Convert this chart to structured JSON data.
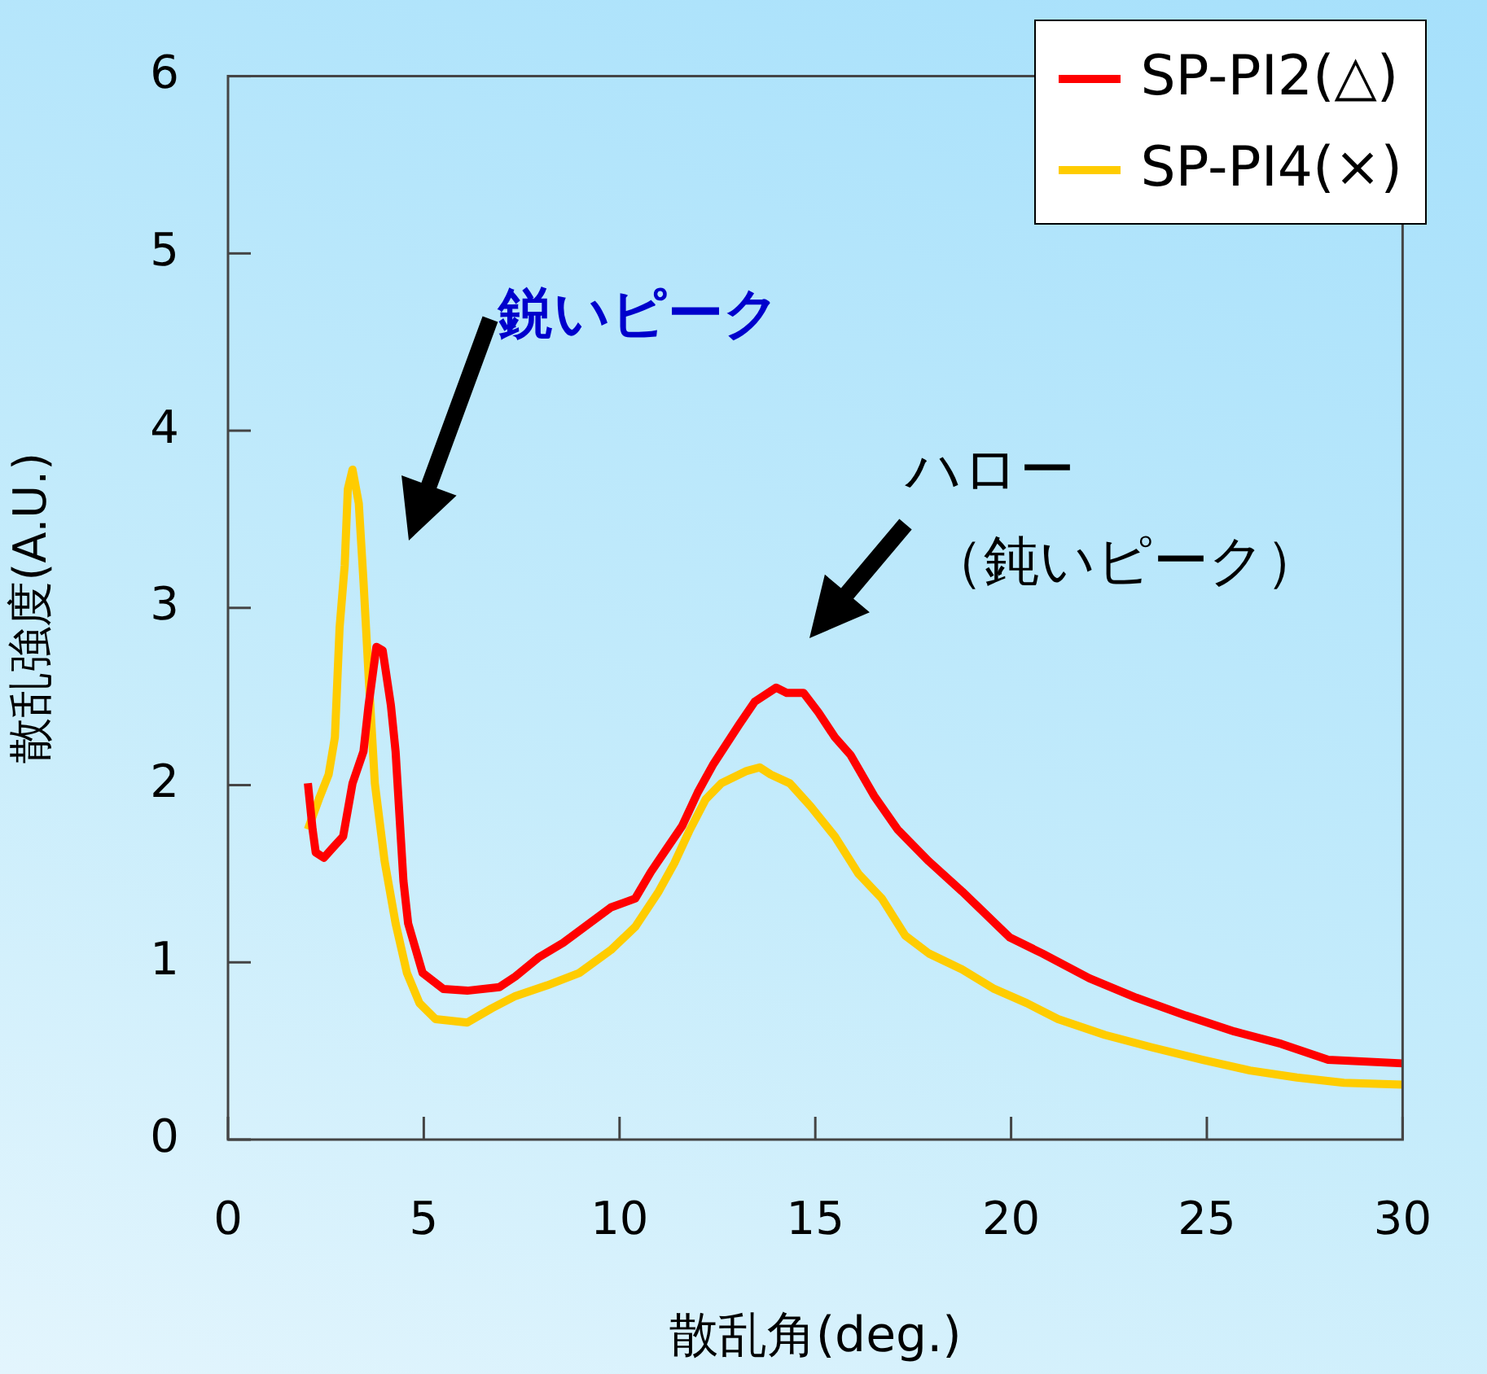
{
  "chart_data": {
    "type": "line",
    "xlabel": "散乱角(deg.)",
    "ylabel": "散乱強度(A.U.)",
    "xlim": [
      0,
      30
    ],
    "xticks": [
      0,
      5,
      10,
      15,
      20,
      25,
      30
    ],
    "ylim": [
      0,
      6
    ],
    "yticks": [
      0,
      1,
      2,
      3,
      4,
      5,
      6
    ],
    "grid": false,
    "legend": "top right",
    "marker": "none",
    "line_style": "solid",
    "annotations": [
      "鋭いピーク",
      "ハロー",
      "（鈍いピーク）"
    ],
    "series": [
      {
        "name": "SP-PI2(△)",
        "color": "#ff0000",
        "x": [
          2.04,
          2.16,
          2.24,
          2.45,
          2.65,
          2.94,
          3.18,
          3.46,
          3.59,
          3.79,
          3.95,
          4.16,
          4.28,
          4.48,
          4.6,
          4.97,
          5.5,
          6.11,
          6.93,
          7.34,
          7.95,
          8.56,
          9.17,
          9.78,
          10.4,
          10.8,
          11.2,
          11.6,
          12.0,
          12.4,
          13.05,
          13.45,
          14.0,
          14.27,
          14.7,
          15.08,
          15.5,
          15.9,
          16.5,
          17.1,
          17.9,
          18.75,
          19.97,
          20.8,
          22.0,
          23.2,
          24.46,
          25.7,
          26.9,
          28.1,
          30
        ],
        "values": [
          2.01,
          1.75,
          1.62,
          1.59,
          1.64,
          1.71,
          2.01,
          2.19,
          2.45,
          2.78,
          2.76,
          2.45,
          2.19,
          1.46,
          1.22,
          0.94,
          0.85,
          0.84,
          0.86,
          0.92,
          1.03,
          1.11,
          1.21,
          1.31,
          1.36,
          1.51,
          1.64,
          1.77,
          1.96,
          2.12,
          2.34,
          2.47,
          2.55,
          2.52,
          2.52,
          2.41,
          2.27,
          2.17,
          1.94,
          1.75,
          1.57,
          1.4,
          1.14,
          1.05,
          0.91,
          0.8,
          0.7,
          0.61,
          0.54,
          0.45,
          0.43
        ]
      },
      {
        "name": "SP-PI4(×)",
        "color": "#ffcc00",
        "x": [
          2.04,
          2.32,
          2.57,
          2.73,
          2.85,
          2.98,
          3.06,
          3.18,
          3.34,
          3.46,
          3.59,
          3.75,
          4.0,
          4.28,
          4.57,
          4.89,
          5.3,
          6.11,
          6.73,
          7.34,
          8.15,
          8.97,
          9.78,
          10.4,
          11.0,
          11.4,
          11.8,
          12.2,
          12.6,
          13.25,
          13.58,
          13.86,
          14.35,
          14.88,
          15.5,
          16.1,
          16.7,
          17.3,
          17.9,
          18.75,
          19.57,
          20.4,
          21.2,
          22.4,
          23.6,
          24.9,
          26.1,
          27.3,
          28.5,
          30
        ],
        "values": [
          1.75,
          1.92,
          2.06,
          2.27,
          2.89,
          3.24,
          3.67,
          3.78,
          3.59,
          3.15,
          2.62,
          2.01,
          1.57,
          1.22,
          0.94,
          0.77,
          0.68,
          0.66,
          0.74,
          0.81,
          0.87,
          0.94,
          1.07,
          1.2,
          1.4,
          1.56,
          1.75,
          1.92,
          2.01,
          2.08,
          2.1,
          2.06,
          2.01,
          1.88,
          1.71,
          1.5,
          1.36,
          1.15,
          1.05,
          0.96,
          0.85,
          0.77,
          0.68,
          0.59,
          0.52,
          0.45,
          0.39,
          0.35,
          0.32,
          0.31
        ]
      }
    ]
  }
}
